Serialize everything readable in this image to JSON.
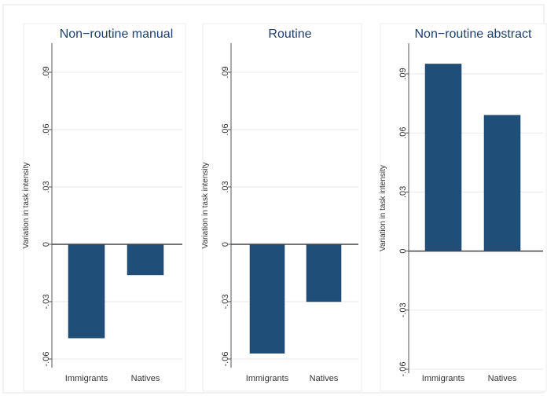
{
  "chart_data": [
    {
      "type": "bar",
      "title": "Non−routine manual",
      "ylabel": "Variation in task intensity",
      "categories": [
        "Immigrants",
        "Natives"
      ],
      "values": [
        -0.049,
        -0.016
      ],
      "ylim": [
        -0.06,
        0.09
      ],
      "yticks": [
        -0.06,
        -0.03,
        0,
        0.03,
        0.06,
        0.09
      ],
      "ytick_labels": [
        "-.06",
        "-.03",
        "0",
        ".03",
        ".06",
        ".09"
      ],
      "grid": true,
      "bar_color": "#1f4e79"
    },
    {
      "type": "bar",
      "title": "Routine",
      "ylabel": "Variation in task intensity",
      "categories": [
        "Immigrants",
        "Natives"
      ],
      "values": [
        -0.057,
        -0.03
      ],
      "ylim": [
        -0.06,
        0.09
      ],
      "yticks": [
        -0.06,
        -0.03,
        0,
        0.03,
        0.06,
        0.09
      ],
      "ytick_labels": [
        "-.06",
        "-.03",
        "0",
        ".03",
        ".06",
        ".09"
      ],
      "grid": true,
      "bar_color": "#1f4e79"
    },
    {
      "type": "bar",
      "title": "Non−routine abstract",
      "ylabel": "Variation in task intensity",
      "categories": [
        "Immigrants",
        "Natives"
      ],
      "values": [
        0.095,
        0.069
      ],
      "ylim": [
        -0.06,
        0.09
      ],
      "yticks": [
        -0.06,
        -0.03,
        0,
        0.03,
        0.06,
        0.09
      ],
      "ytick_labels": [
        "-.06",
        "-.03",
        "0",
        ".03",
        ".06",
        ".09"
      ],
      "grid": true,
      "bar_color": "#1f4e79"
    }
  ]
}
